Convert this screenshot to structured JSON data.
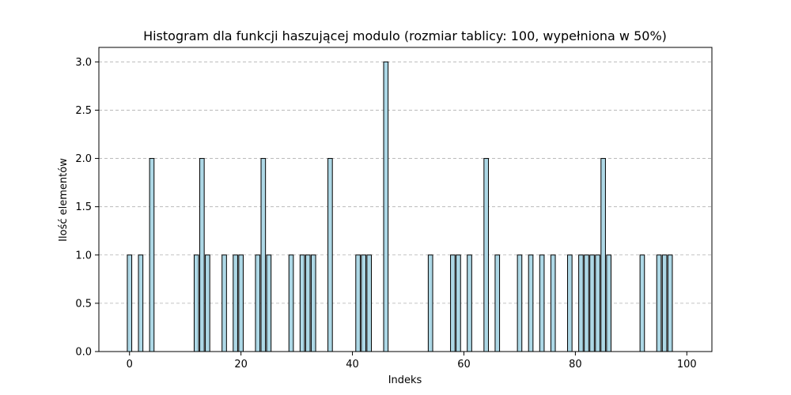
{
  "chart_data": {
    "type": "bar",
    "title": "Histogram dla funkcji haszującej modulo (rozmiar tablicy: 100, wypełniona w 50%)",
    "xlabel": "Indeks",
    "ylabel": "Ilość elementów",
    "xlim": [
      -5.5,
      104.5
    ],
    "ylim": [
      0,
      3.15
    ],
    "xticks": [
      0,
      20,
      40,
      60,
      80,
      100
    ],
    "xtick_labels": [
      "0",
      "20",
      "40",
      "60",
      "80",
      "100"
    ],
    "yticks": [
      0.0,
      0.5,
      1.0,
      1.5,
      2.0,
      2.5,
      3.0
    ],
    "ytick_labels": [
      "0.0",
      "0.5",
      "1.0",
      "1.5",
      "2.0",
      "2.5",
      "3.0"
    ],
    "grid": "y-dashed",
    "bar_color": "#add8e6",
    "edge_color": "#000000",
    "categories": [
      0,
      1,
      2,
      3,
      4,
      5,
      6,
      7,
      8,
      9,
      10,
      11,
      12,
      13,
      14,
      15,
      16,
      17,
      18,
      19,
      20,
      21,
      22,
      23,
      24,
      25,
      26,
      27,
      28,
      29,
      30,
      31,
      32,
      33,
      34,
      35,
      36,
      37,
      38,
      39,
      40,
      41,
      42,
      43,
      44,
      45,
      46,
      47,
      48,
      49,
      50,
      51,
      52,
      53,
      54,
      55,
      56,
      57,
      58,
      59,
      60,
      61,
      62,
      63,
      64,
      65,
      66,
      67,
      68,
      69,
      70,
      71,
      72,
      73,
      74,
      75,
      76,
      77,
      78,
      79,
      80,
      81,
      82,
      83,
      84,
      85,
      86,
      87,
      88,
      89,
      90,
      91,
      92,
      93,
      94,
      95,
      96,
      97,
      98,
      99
    ],
    "values": [
      1,
      0,
      1,
      0,
      2,
      0,
      0,
      0,
      0,
      0,
      0,
      0,
      1,
      2,
      1,
      0,
      0,
      1,
      0,
      1,
      1,
      0,
      0,
      1,
      2,
      1,
      0,
      0,
      0,
      1,
      0,
      1,
      1,
      1,
      0,
      0,
      2,
      0,
      0,
      0,
      0,
      1,
      1,
      1,
      0,
      0,
      3,
      0,
      0,
      0,
      0,
      0,
      0,
      0,
      1,
      0,
      0,
      0,
      1,
      1,
      0,
      1,
      0,
      0,
      2,
      0,
      1,
      0,
      0,
      0,
      1,
      0,
      1,
      0,
      1,
      0,
      1,
      0,
      0,
      1,
      0,
      1,
      1,
      1,
      1,
      2,
      1,
      0,
      0,
      0,
      0,
      0,
      1,
      0,
      0,
      1,
      1,
      1,
      0,
      0
    ]
  }
}
